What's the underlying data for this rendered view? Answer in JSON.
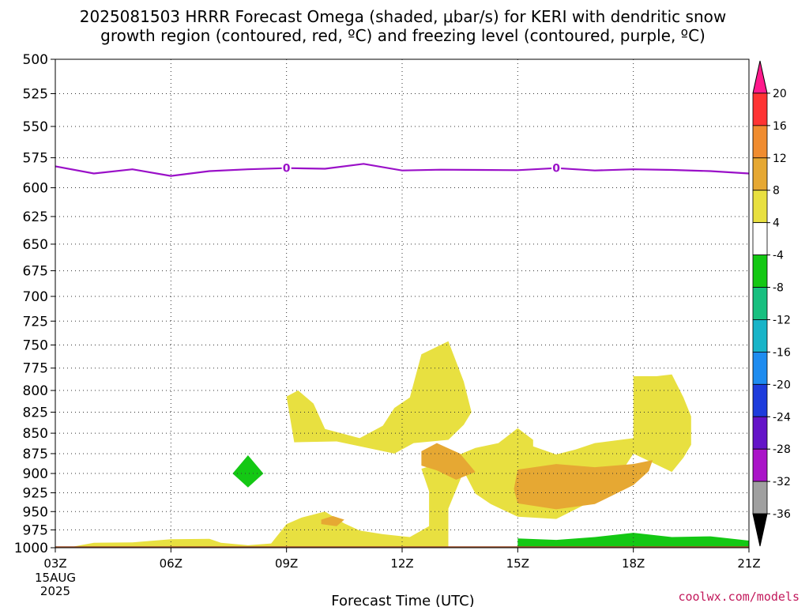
{
  "chart_data": {
    "type": "heatmap",
    "title_lines": [
      "2025081503 HRRR Forecast Omega (shaded, μbar/s) for KERI with dendritic snow",
      "growth region (contoured, red, ºC) and freezing level (contoured, purple, ºC)"
    ],
    "xlabel": "Forecast Time (UTC)",
    "x_ticks": [
      {
        "hour": 3,
        "label": "03Z",
        "sub": [
          "15AUG",
          "2025"
        ]
      },
      {
        "hour": 6,
        "label": "06Z"
      },
      {
        "hour": 9,
        "label": "09Z"
      },
      {
        "hour": 12,
        "label": "12Z"
      },
      {
        "hour": 15,
        "label": "15Z"
      },
      {
        "hour": 18,
        "label": "18Z"
      },
      {
        "hour": 21,
        "label": "21Z"
      }
    ],
    "xlim": [
      3,
      21
    ],
    "y_axis": {
      "scale": "log-pressure",
      "reversed": true,
      "ylim": [
        1000,
        500
      ],
      "unit": "hPa"
    },
    "y_ticks": [
      500,
      525,
      550,
      575,
      600,
      625,
      650,
      675,
      700,
      725,
      750,
      775,
      800,
      825,
      850,
      875,
      900,
      925,
      950,
      975,
      1000
    ],
    "grid": true,
    "colorbar": {
      "placement": "right",
      "labels": [
        "20",
        "16",
        "12",
        "8",
        "4",
        "-4",
        "-8",
        "-12",
        "-16",
        "-20",
        "-24",
        "-28",
        "-32",
        "-36"
      ],
      "colors": [
        "#ff1a8c",
        "#ff3333",
        "#f08c30",
        "#e6a833",
        "#e8e040",
        "#ffffff",
        "#14c814",
        "#18c080",
        "#18b4c8",
        "#1e8cf0",
        "#1e3cdc",
        "#6414c8",
        "#aa14c8",
        "#a0a0a0",
        "#000000"
      ]
    },
    "freezing_level": {
      "color": "#9a10c8",
      "label": "0",
      "points": [
        [
          3,
          582
        ],
        [
          4,
          588
        ],
        [
          5,
          584.5
        ],
        [
          6,
          590
        ],
        [
          7,
          586
        ],
        [
          8,
          584.5
        ],
        [
          9,
          583.5
        ],
        [
          10,
          584
        ],
        [
          11,
          580
        ],
        [
          12,
          585.5
        ],
        [
          13,
          584.8
        ],
        [
          14,
          585
        ],
        [
          15,
          585.2
        ],
        [
          16,
          583.5
        ],
        [
          17,
          585.5
        ],
        [
          18,
          584.5
        ],
        [
          19,
          585
        ],
        [
          20,
          586
        ],
        [
          21,
          588
        ]
      ],
      "label_hours": [
        9,
        16
      ]
    },
    "omega_regions": [
      {
        "value_range": [
          4,
          8
        ],
        "color": "#e8e040",
        "points": [
          [
            3.5,
            998
          ],
          [
            4,
            993
          ],
          [
            5,
            992.5
          ],
          [
            6,
            988
          ],
          [
            7,
            987.5
          ],
          [
            7.3,
            993
          ],
          [
            8,
            996.5
          ],
          [
            8.6,
            994
          ],
          [
            9,
            967
          ],
          [
            9.4,
            958
          ],
          [
            10,
            950
          ],
          [
            10.5,
            966
          ],
          [
            10.9,
            976
          ],
          [
            11.5,
            981
          ],
          [
            12.2,
            985
          ],
          [
            12.7,
            970
          ],
          [
            12.7,
            923
          ],
          [
            12.5,
            894
          ],
          [
            12.9,
            888
          ],
          [
            13.9,
            868
          ],
          [
            14.5,
            862
          ],
          [
            15,
            844
          ],
          [
            15.4,
            858
          ],
          [
            15.4,
            866
          ],
          [
            16,
            876
          ],
          [
            16.5,
            870
          ],
          [
            17,
            862
          ],
          [
            18,
            856
          ],
          [
            18,
            832
          ],
          [
            18,
            784
          ],
          [
            18.6,
            784
          ],
          [
            19,
            782
          ],
          [
            19.3,
            808
          ],
          [
            19.5,
            830
          ],
          [
            19.5,
            864
          ],
          [
            19.3,
            880
          ],
          [
            19,
            898
          ],
          [
            18,
            875
          ],
          [
            17.6,
            905
          ],
          [
            17,
            934
          ],
          [
            16,
            960
          ],
          [
            15,
            957
          ],
          [
            14.3,
            940
          ],
          [
            13.9,
            926
          ],
          [
            13.6,
            897
          ],
          [
            13.2,
            946
          ],
          [
            13.2,
            974
          ],
          [
            13.2,
            1000
          ],
          [
            3.5,
            1000
          ]
        ]
      },
      {
        "value_range": [
          4,
          8
        ],
        "color": "#e8e040",
        "points": [
          [
            9,
            807
          ],
          [
            9.3,
            800
          ],
          [
            9.7,
            815
          ],
          [
            10,
            845
          ],
          [
            10.9,
            856
          ],
          [
            11.5,
            841
          ],
          [
            11.8,
            820
          ],
          [
            12.2,
            808
          ],
          [
            12.5,
            760
          ],
          [
            13.2,
            746
          ],
          [
            13.6,
            790
          ],
          [
            13.8,
            825
          ],
          [
            13.6,
            840
          ],
          [
            13.2,
            858
          ],
          [
            12.3,
            862
          ],
          [
            11.8,
            875
          ],
          [
            10.3,
            860
          ],
          [
            9.2,
            861
          ]
        ]
      },
      {
        "value_range": [
          8,
          12
        ],
        "color": "#e6a833",
        "points": [
          [
            12.5,
            872
          ],
          [
            12.9,
            862
          ],
          [
            13.5,
            875
          ],
          [
            13.9,
            898
          ],
          [
            13.4,
            908
          ],
          [
            12.9,
            896
          ],
          [
            12.5,
            890
          ]
        ]
      },
      {
        "value_range": [
          8,
          12
        ],
        "color": "#e6a833",
        "points": [
          [
            15,
            895
          ],
          [
            16,
            888
          ],
          [
            17,
            892
          ],
          [
            18,
            888
          ],
          [
            18.5,
            883
          ],
          [
            18.4,
            897
          ],
          [
            18,
            915
          ],
          [
            17,
            940
          ],
          [
            16,
            947
          ],
          [
            15,
            939
          ],
          [
            14.9,
            920
          ]
        ]
      },
      {
        "value_range": [
          8,
          12
        ],
        "color": "#e6a833",
        "points": [
          [
            9.9,
            961
          ],
          [
            10.2,
            956
          ],
          [
            10.5,
            961
          ],
          [
            10.3,
            970
          ],
          [
            9.9,
            967
          ]
        ]
      },
      {
        "value_range": [
          -8,
          -4
        ],
        "color": "#14c814",
        "points": [
          [
            7.6,
            900
          ],
          [
            8,
            877
          ],
          [
            8.4,
            900
          ],
          [
            8,
            918
          ]
        ]
      },
      {
        "value_range": [
          -8,
          -4
        ],
        "color": "#14c814",
        "points": [
          [
            15,
            987
          ],
          [
            16,
            989
          ],
          [
            17,
            985
          ],
          [
            18,
            979
          ],
          [
            19,
            985
          ],
          [
            20,
            984
          ],
          [
            21,
            990
          ],
          [
            21,
            1000
          ],
          [
            15,
            1000
          ]
        ]
      }
    ],
    "terrain": {
      "color": "#a0522d",
      "from_pressure": 998,
      "to_pressure": 1000
    }
  },
  "credit": "coolwx.com/models"
}
